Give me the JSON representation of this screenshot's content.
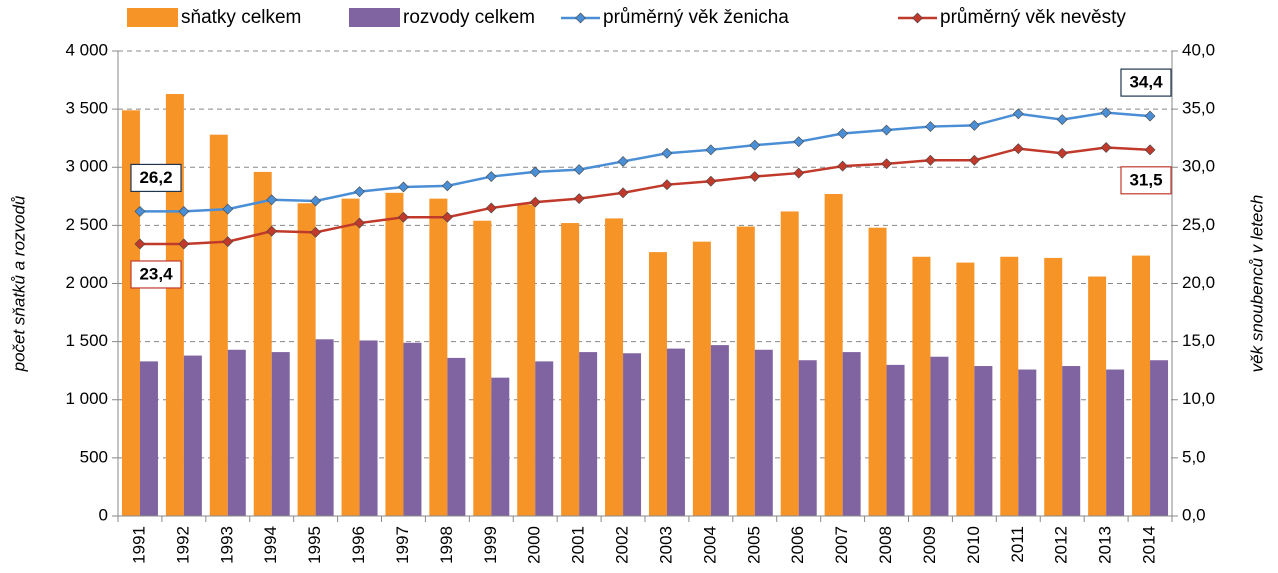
{
  "chart_data": {
    "type": "bar",
    "categories": [
      "1991",
      "1992",
      "1993",
      "1994",
      "1995",
      "1996",
      "1997",
      "1998",
      "1999",
      "2000",
      "2001",
      "2002",
      "2003",
      "2004",
      "2005",
      "2006",
      "2007",
      "2008",
      "2009",
      "2010",
      "2011",
      "2012",
      "2013",
      "2014"
    ],
    "ylabel": "počet sňatků a rozvodů",
    "y2label": "věk snoubenců v letech",
    "ylim": [
      0,
      4000
    ],
    "yticks": [
      0,
      500,
      {
        "value": 1000,
        "label": "1 000"
      },
      {
        "value": 1500,
        "label": "1 500"
      },
      {
        "value": 2000,
        "label": "2 000"
      },
      {
        "value": 2500,
        "label": "2 500"
      },
      {
        "value": 3000,
        "label": "3 000"
      },
      {
        "value": 3500,
        "label": "3 500"
      },
      {
        "value": 4000,
        "label": "4 000"
      }
    ],
    "y2lim": [
      0,
      40
    ],
    "y2ticks": [
      {
        "value": 0,
        "label": "0,0"
      },
      {
        "value": 5,
        "label": "5,0"
      },
      {
        "value": 10,
        "label": "10,0"
      },
      {
        "value": 15,
        "label": "15,0"
      },
      {
        "value": 20,
        "label": "20,0"
      },
      {
        "value": 25,
        "label": "25,0"
      },
      {
        "value": 30,
        "label": "30,0"
      },
      {
        "value": 35,
        "label": "35,0"
      },
      {
        "value": 40,
        "label": "40,0"
      }
    ],
    "grid": true,
    "legend": "top",
    "series": [
      {
        "name": "sňatky celkem",
        "type": "bar",
        "color": "#f79428",
        "values": [
          3490,
          3630,
          3280,
          2960,
          2690,
          2730,
          2780,
          2730,
          2540,
          2680,
          2520,
          2560,
          2270,
          2360,
          2490,
          2620,
          2770,
          2480,
          2230,
          2180,
          2230,
          2220,
          2060,
          2240
        ]
      },
      {
        "name": "rozvody celkem",
        "type": "bar",
        "color": "#8064a2",
        "values": [
          1330,
          1380,
          1430,
          1410,
          1520,
          1510,
          1490,
          1360,
          1190,
          1330,
          1410,
          1400,
          1440,
          1470,
          1430,
          1340,
          1410,
          1300,
          1370,
          1290,
          1260,
          1290,
          1260,
          1340
        ]
      },
      {
        "name": "průměrný věk ženicha",
        "type": "line",
        "axis": "y2",
        "color": "#4a8fd6",
        "label_border": "#1f3550",
        "values": [
          26.2,
          26.2,
          26.4,
          27.2,
          27.1,
          27.9,
          28.3,
          28.4,
          29.2,
          29.6,
          29.8,
          30.5,
          31.2,
          31.5,
          31.9,
          32.2,
          32.9,
          33.2,
          33.5,
          33.6,
          34.6,
          34.1,
          34.7,
          34.4
        ],
        "value_labels": [
          "26,2",
          null,
          null,
          null,
          null,
          null,
          null,
          null,
          null,
          null,
          null,
          null,
          null,
          null,
          null,
          null,
          null,
          null,
          null,
          null,
          null,
          null,
          null,
          "34,4"
        ]
      },
      {
        "name": "průměrný věk nevěsty",
        "type": "line",
        "axis": "y2",
        "color": "#c0392b",
        "label_border": "#c0392b",
        "values": [
          23.4,
          23.4,
          23.6,
          24.5,
          24.4,
          25.2,
          25.7,
          25.7,
          26.5,
          27.0,
          27.3,
          27.8,
          28.5,
          28.8,
          29.2,
          29.5,
          30.1,
          30.3,
          30.6,
          30.6,
          31.6,
          31.2,
          31.7,
          31.5
        ],
        "value_labels": [
          "23,4",
          null,
          null,
          null,
          null,
          null,
          null,
          null,
          null,
          null,
          null,
          null,
          null,
          null,
          null,
          null,
          null,
          null,
          null,
          null,
          null,
          null,
          null,
          "31,5"
        ]
      }
    ]
  }
}
